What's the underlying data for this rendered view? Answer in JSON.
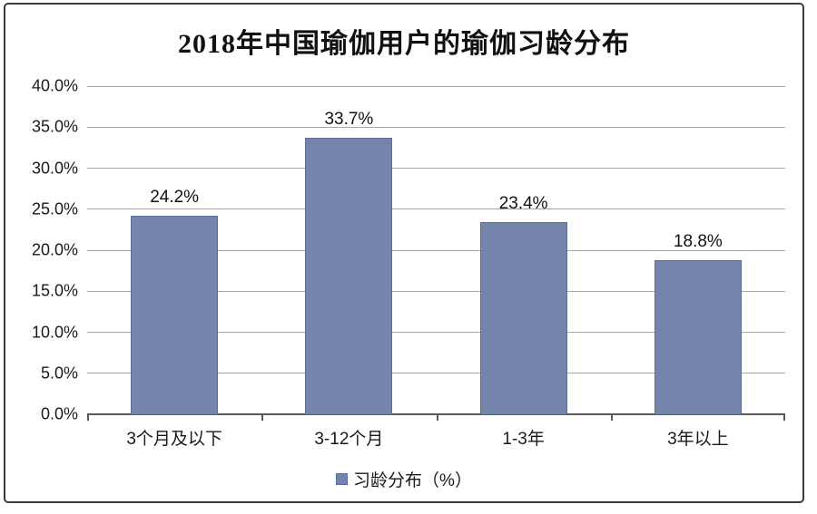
{
  "chart_data": {
    "type": "bar",
    "title": "2018年中国瑜伽用户的瑜伽习龄分布",
    "categories": [
      "3个月及以下",
      "3-12个月",
      "1-3年",
      "3年以上"
    ],
    "values": [
      24.2,
      33.7,
      23.4,
      18.8
    ],
    "value_labels": [
      "24.2%",
      "33.7%",
      "23.4%",
      "18.8%"
    ],
    "series_name": "习龄分布（%）",
    "xlabel": "",
    "ylabel": "",
    "ylim": [
      0,
      40
    ],
    "yticks": [
      {
        "value": 0,
        "label": "0.0%"
      },
      {
        "value": 5,
        "label": "5.0%"
      },
      {
        "value": 10,
        "label": "10.0%"
      },
      {
        "value": 15,
        "label": "15.0%"
      },
      {
        "value": 20,
        "label": "20.0%"
      },
      {
        "value": 25,
        "label": "25.0%"
      },
      {
        "value": 30,
        "label": "30.0%"
      },
      {
        "value": 35,
        "label": "35.0%"
      },
      {
        "value": 40,
        "label": "40.0%"
      }
    ],
    "grid": true,
    "legend_position": "bottom",
    "colors": {
      "bar_fill": "#7584AB",
      "bar_border": "#5E6D99",
      "grid_line": "#A6A6A6",
      "axis_line": "#595959",
      "text": "#111111",
      "frame_border": "#3B3B3B",
      "background": "#FFFFFF"
    }
  }
}
